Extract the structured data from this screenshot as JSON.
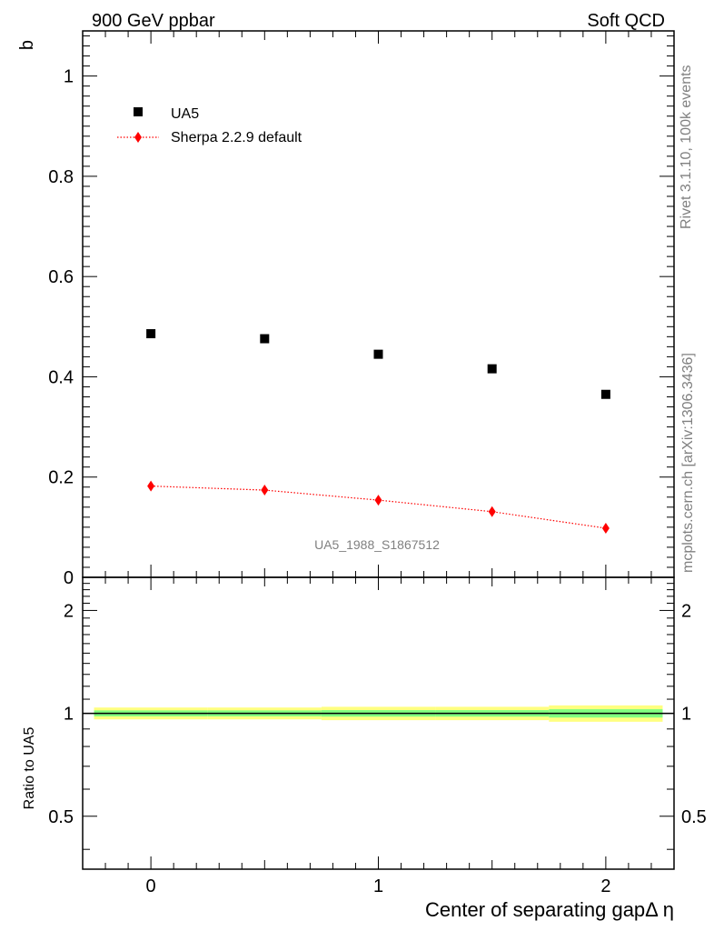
{
  "header": {
    "left_title": "900 GeV ppbar",
    "right_title": "Soft QCD"
  },
  "side_labels": {
    "rivet": "Rivet 3.1.10,  100k events",
    "mcplots": "mcplots.cern.ch [arXiv:1306.3436]"
  },
  "chart_data": [
    {
      "type": "scatter",
      "panel": "main",
      "ylabel": "b",
      "xlim": [
        -0.3,
        2.3
      ],
      "ylim": [
        0,
        1.09
      ],
      "x_ticks": [
        0,
        1,
        2
      ],
      "y_ticks": [
        0,
        0.2,
        0.4,
        0.6,
        0.8,
        1
      ],
      "y_tick_labels": [
        "0",
        "0.2",
        "0.4",
        "0.6",
        "0.8",
        "1"
      ],
      "watermark": "UA5_1988_S1867512",
      "legend_position": "top-left",
      "series": [
        {
          "name": "UA5",
          "style": "black-square-markers",
          "color": "#000000",
          "x": [
            0,
            0.5,
            1,
            1.5,
            2
          ],
          "y": [
            0.486,
            0.476,
            0.445,
            0.416,
            0.365
          ]
        },
        {
          "name": "Sherpa 2.2.9 default",
          "style": "red-diamond-dotted-line",
          "color": "#ff0000",
          "x": [
            0,
            0.5,
            1,
            1.5,
            2
          ],
          "y": [
            0.182,
            0.174,
            0.154,
            0.131,
            0.098
          ]
        }
      ]
    },
    {
      "type": "line",
      "panel": "ratio",
      "ylabel": "Ratio to UA5",
      "xlabel": "Center of separating gapΔ η",
      "xlim": [
        -0.3,
        2.3
      ],
      "ylim": [
        0.35,
        2.5
      ],
      "x_ticks": [
        0,
        1,
        2
      ],
      "x_tick_labels": [
        "0",
        "1",
        "2"
      ],
      "y_ticks": [
        0.5,
        1,
        2
      ],
      "y_tick_labels": [
        "0.5",
        "1",
        "2"
      ],
      "bins": [
        [
          -0.25,
          0.25
        ],
        [
          0.25,
          0.75
        ],
        [
          0.75,
          1.25
        ],
        [
          1.25,
          1.75
        ],
        [
          1.75,
          2.25
        ]
      ],
      "band_yellow_halfwidth": [
        0.04,
        0.04,
        0.045,
        0.045,
        0.055
      ],
      "band_green_halfwidth": [
        0.02,
        0.02,
        0.022,
        0.022,
        0.028
      ],
      "colors": {
        "yellow": "#ffff80",
        "green": "#80ff80",
        "line": "#000000"
      }
    }
  ]
}
